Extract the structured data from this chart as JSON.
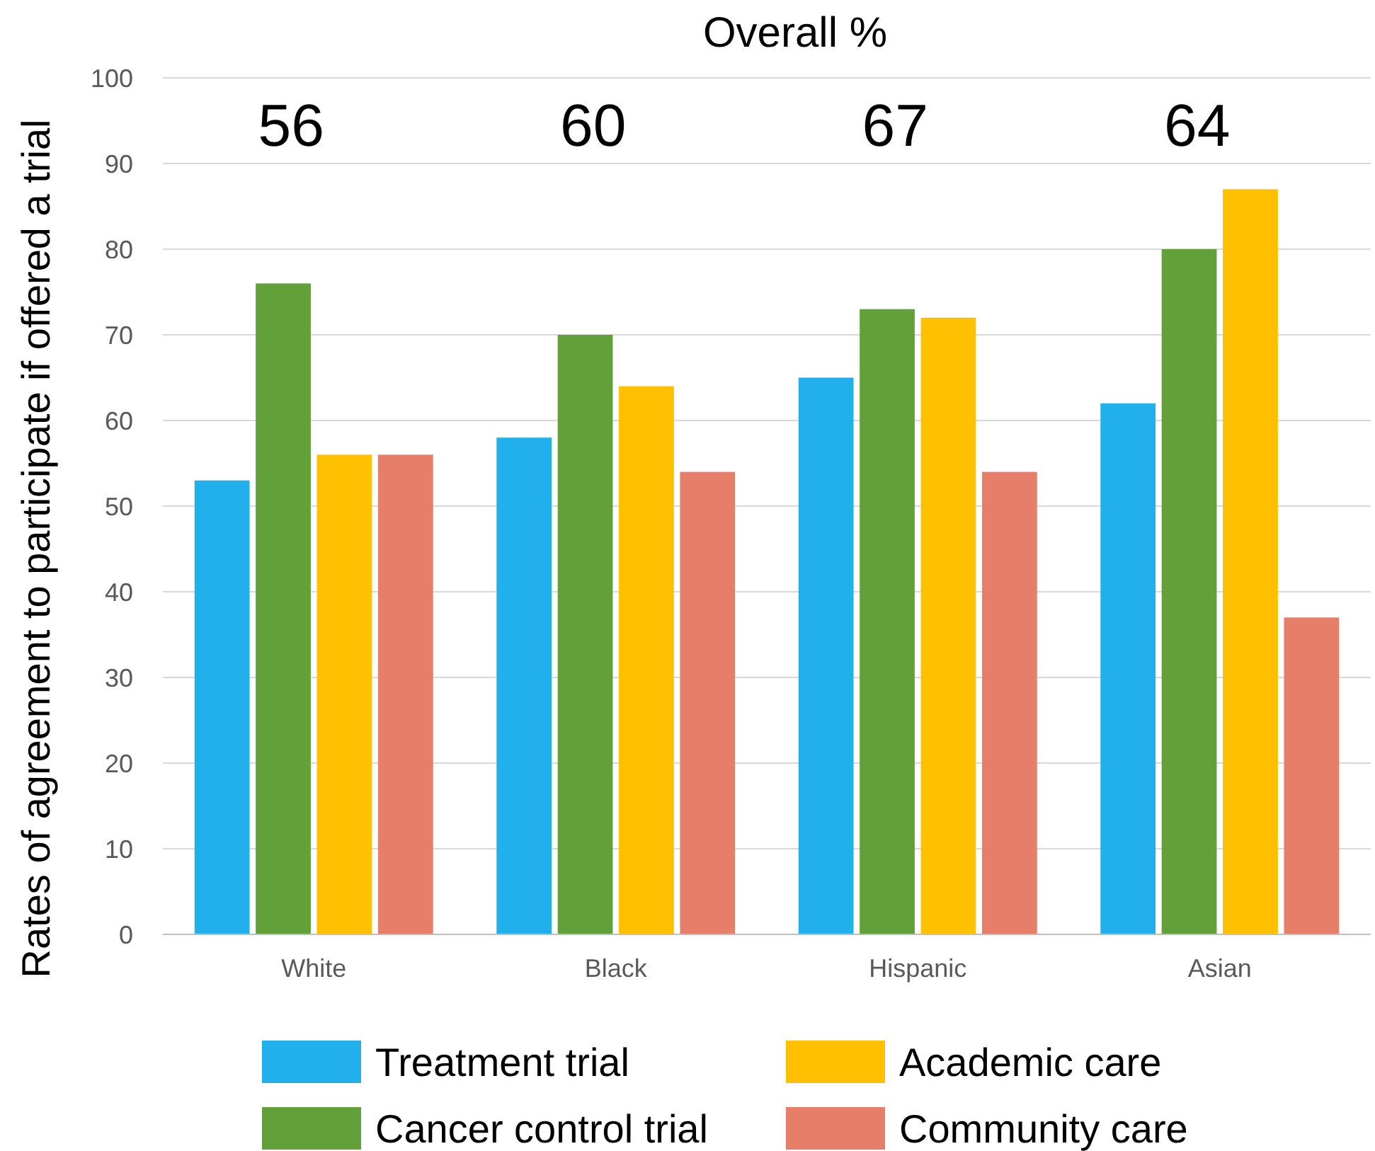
{
  "chart_data": {
    "type": "bar",
    "subtitle": "Overall %",
    "ylabel": "Rates of agreement to participate if offered a trial",
    "categories": [
      "White",
      "Black",
      "Hispanic",
      "Asian"
    ],
    "series": [
      {
        "name": "Treatment trial",
        "color": "#21b0ec",
        "values": [
          53,
          58,
          65,
          62
        ]
      },
      {
        "name": "Cancer control trial",
        "color": "#62a03a",
        "values": [
          76,
          70,
          73,
          80
        ]
      },
      {
        "name": "Academic care",
        "color": "#fec000",
        "values": [
          56,
          64,
          72,
          87
        ]
      },
      {
        "name": "Community care",
        "color": "#e77e6a",
        "values": [
          56,
          54,
          54,
          37
        ]
      }
    ],
    "annotations": [
      "56",
      "60",
      "67",
      "64"
    ],
    "ylim": [
      0,
      100
    ],
    "yticks": [
      0,
      10,
      20,
      30,
      40,
      50,
      60,
      70,
      80,
      90,
      100
    ],
    "grid": "y",
    "legend": "bottom"
  }
}
